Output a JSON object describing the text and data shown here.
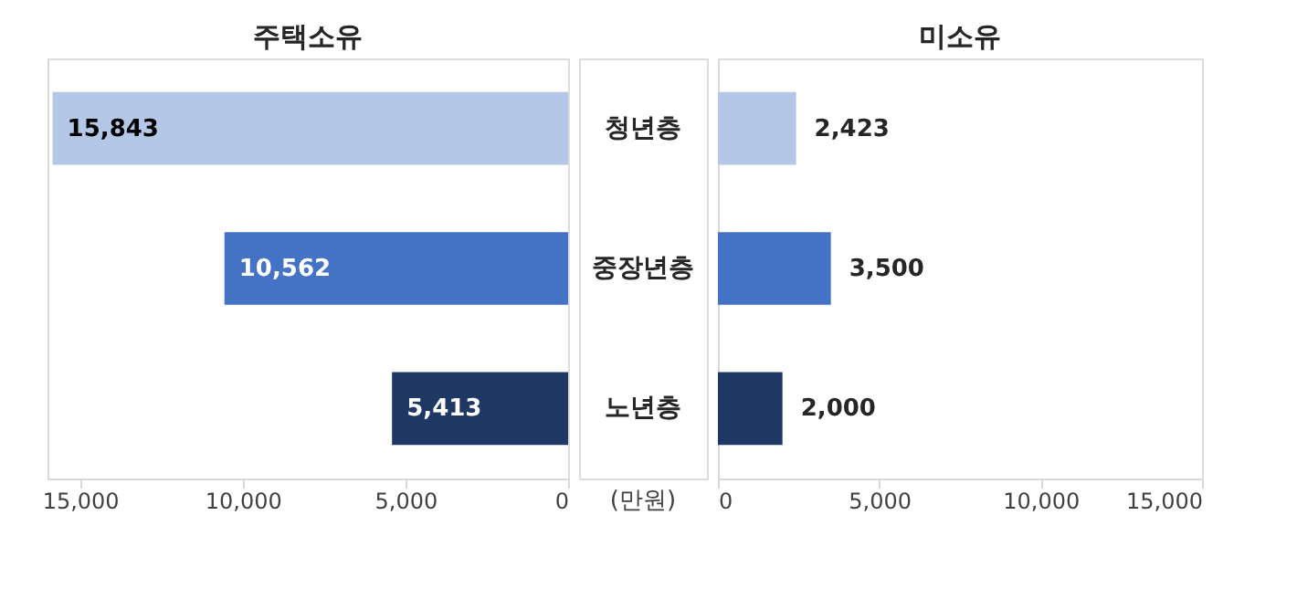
{
  "chart_data": [
    {
      "type": "bar",
      "orientation": "horizontal",
      "title": "주택소유",
      "categories": [
        "청년층",
        "중장년층",
        "노년층"
      ],
      "values": [
        15843,
        10562,
        5413
      ],
      "value_labels": [
        "15,843",
        "10,562",
        "5,413"
      ],
      "colors": [
        "#b4c7e7",
        "#4472c4",
        "#1f3864"
      ],
      "xlim": [
        16000,
        0
      ],
      "xticks": [
        {
          "value": 15000,
          "label": "15,000"
        },
        {
          "value": 10000,
          "label": "10,000"
        },
        {
          "value": 5000,
          "label": "5,000"
        },
        0
      ],
      "grid": false,
      "tick_labels": "x",
      "annotations": [
        "(만원)"
      ]
    },
    {
      "type": "bar",
      "orientation": "horizontal",
      "title": "미소유",
      "categories": [
        null,
        null,
        null
      ],
      "values": [
        2423,
        3500,
        2000
      ],
      "value_labels": [
        "2,423",
        "3,500",
        "2,000"
      ],
      "colors": [
        "#b4c7e7",
        "#4472c4",
        "#1f3864"
      ],
      "xlim": [
        0,
        15000
      ],
      "xticks": [
        0,
        {
          "value": 5000,
          "label": "5,000"
        },
        {
          "value": 10000,
          "label": "10,000"
        },
        {
          "value": 15000,
          "label": "15,000"
        }
      ],
      "grid": false,
      "tick_labels": "x"
    }
  ]
}
